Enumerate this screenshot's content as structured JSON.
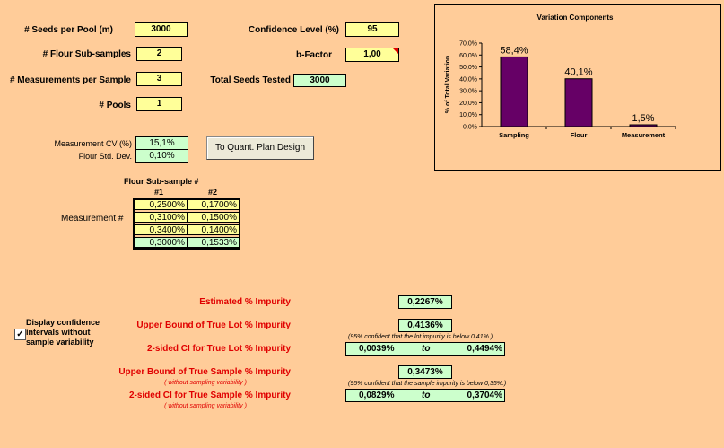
{
  "inputs": {
    "seeds_per_pool": {
      "label": "# Seeds per Pool (m)",
      "value": "3000"
    },
    "flour_subsamples": {
      "label": "# Flour Sub-samples",
      "value": "2"
    },
    "measurements_per_sample": {
      "label": "# Measurements per Sample",
      "value": "3"
    },
    "pools": {
      "label": "# Pools",
      "value": "1"
    },
    "confidence_level": {
      "label": "Confidence Level (%)",
      "value": "95"
    },
    "b_factor": {
      "label": "b-Factor",
      "value": "1,00"
    },
    "total_seeds_tested": {
      "label": "Total Seeds Tested",
      "value": "3000"
    },
    "measurement_cv": {
      "label": "Measurement CV (%)",
      "value": "15,1%"
    },
    "flour_std_dev": {
      "label": "Flour Std. Dev.",
      "value": "0,10%"
    }
  },
  "button": {
    "label": "To Quant. Plan Design"
  },
  "matrix": {
    "title": "Flour Sub-sample #",
    "col_headers": [
      "#1",
      "#2"
    ],
    "row_label": "Measurement #",
    "rows": [
      [
        "0,2500%",
        "0,1700%"
      ],
      [
        "0,3100%",
        "0,1500%"
      ],
      [
        "0,3400%",
        "0,1400%"
      ]
    ],
    "means": [
      "0,3000%",
      "0,1533%"
    ]
  },
  "checkbox": {
    "label": "Display confidence intervals without sample variability",
    "checked": true
  },
  "results": {
    "estimated": {
      "label": "Estimated % Impurity",
      "value": "0,2267%"
    },
    "upper_lot": {
      "label": "Upper Bound of True Lot % Impurity",
      "value": "0,4136%",
      "note": "(95% confident that the lot impurity is below 0,41%.)"
    },
    "ci_lot": {
      "label": "2-sided CI for True Lot % Impurity",
      "low": "0,0039%",
      "to": "to",
      "high": "0,4494%"
    },
    "upper_sample": {
      "label": "Upper Bound of True Sample % Impurity",
      "sub": "( without sampling variability )",
      "value": "0,3473%",
      "note": "(95% confident that the sample impurity is below 0,35%.)"
    },
    "ci_sample": {
      "label": "2-sided CI for True Sample % Impurity",
      "sub": "( without sampling variability )",
      "low": "0,0829%",
      "to": "to",
      "high": "0,3704%"
    }
  },
  "chart_data": {
    "type": "bar",
    "title": "Variation Components",
    "ylabel": "% of Total Variation",
    "categories": [
      "Sampling",
      "Flour",
      "Measurement"
    ],
    "values": [
      58.4,
      40.1,
      1.5
    ],
    "data_labels": [
      "58,4%",
      "40,1%",
      "1,5%"
    ],
    "ylim": [
      0,
      70
    ],
    "yticks": [
      "0,0%",
      "10,0%",
      "20,0%",
      "30,0%",
      "40,0%",
      "50,0%",
      "60,0%",
      "70,0%"
    ],
    "bar_color": "#660066"
  }
}
